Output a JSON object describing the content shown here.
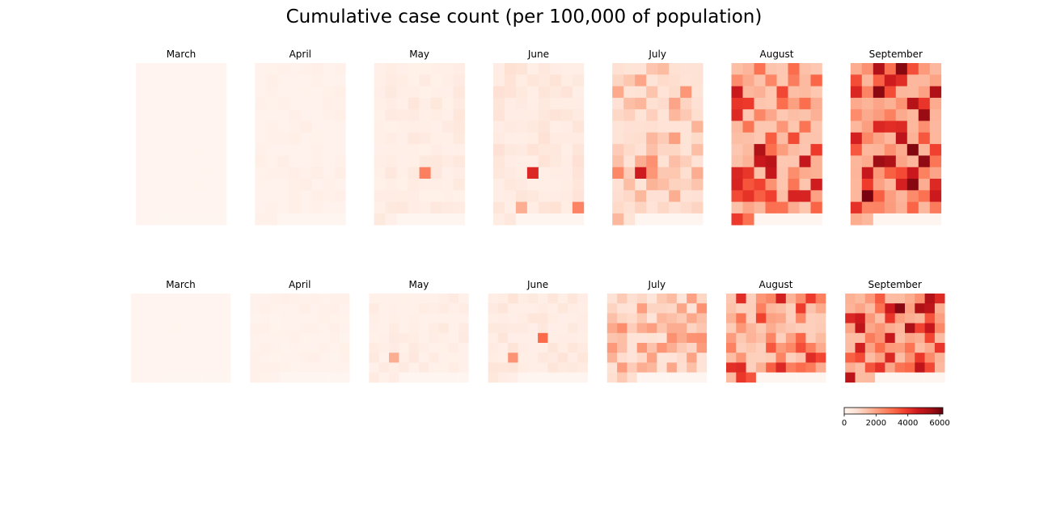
{
  "chart_data": {
    "type": "heatmap",
    "title": "Cumulative case count (per 100,000 of population)",
    "colormap": "Reds",
    "color_range": [
      0,
      6200
    ],
    "colorbar": {
      "ticks": [
        0,
        2000,
        4000,
        6000
      ],
      "tick_labels": [
        "0",
        "2000",
        "4000",
        "6000"
      ]
    },
    "panels_top": [
      {
        "label": "March",
        "cols": 8,
        "rows": 14,
        "level": 20,
        "var": 20,
        "seed": 11
      },
      {
        "label": "April",
        "cols": 8,
        "rows": 14,
        "level": 100,
        "var": 160,
        "seed": 23
      },
      {
        "label": "May",
        "cols": 8,
        "rows": 14,
        "level": 200,
        "var": 350,
        "seed": 37,
        "hot": [
          [
            4,
            9,
            2700
          ]
        ]
      },
      {
        "label": "June",
        "cols": 8,
        "rows": 14,
        "level": 260,
        "var": 480,
        "seed": 41,
        "hot": [
          [
            3,
            9,
            4300
          ],
          [
            7,
            12,
            2600
          ],
          [
            2,
            12,
            1800
          ]
        ]
      },
      {
        "label": "July",
        "cols": 8,
        "rows": 14,
        "level": 650,
        "var": 1900,
        "seed": 53,
        "hot": [
          [
            2,
            9,
            4600
          ]
        ]
      },
      {
        "label": "August",
        "cols": 8,
        "rows": 14,
        "level": 1300,
        "var": 3600,
        "seed": 67,
        "hot": [
          [
            2,
            7,
            5200
          ],
          [
            3,
            8,
            5000
          ],
          [
            3,
            9,
            4800
          ]
        ]
      },
      {
        "label": "September",
        "cols": 8,
        "rows": 14,
        "level": 1600,
        "var": 4400,
        "seed": 79,
        "hot": [
          [
            4,
            0,
            5800
          ],
          [
            5,
            13,
            5900
          ],
          [
            6,
            8,
            5700
          ],
          [
            2,
            8,
            5500
          ]
        ]
      }
    ],
    "panels_bottom": [
      {
        "label": "March",
        "cols": 10,
        "rows": 9,
        "level": 20,
        "var": 20,
        "seed": 83
      },
      {
        "label": "April",
        "cols": 10,
        "rows": 9,
        "level": 90,
        "var": 140,
        "seed": 89
      },
      {
        "label": "May",
        "cols": 10,
        "rows": 9,
        "level": 180,
        "var": 320,
        "seed": 97,
        "hot": [
          [
            2,
            6,
            1800
          ]
        ]
      },
      {
        "label": "June",
        "cols": 10,
        "rows": 9,
        "level": 240,
        "var": 420,
        "seed": 101,
        "hot": [
          [
            5,
            4,
            3100
          ],
          [
            2,
            6,
            2300
          ]
        ]
      },
      {
        "label": "July",
        "cols": 10,
        "rows": 9,
        "level": 600,
        "var": 1800,
        "seed": 103
      },
      {
        "label": "August",
        "cols": 10,
        "rows": 9,
        "level": 1100,
        "var": 3200,
        "seed": 107,
        "hot": [
          [
            5,
            0,
            4500
          ],
          [
            5,
            7,
            4300
          ]
        ]
      },
      {
        "label": "September",
        "cols": 10,
        "rows": 9,
        "level": 1500,
        "var": 4000,
        "seed": 109,
        "hot": [
          [
            5,
            1,
            5800
          ],
          [
            7,
            7,
            4900
          ]
        ]
      }
    ]
  }
}
